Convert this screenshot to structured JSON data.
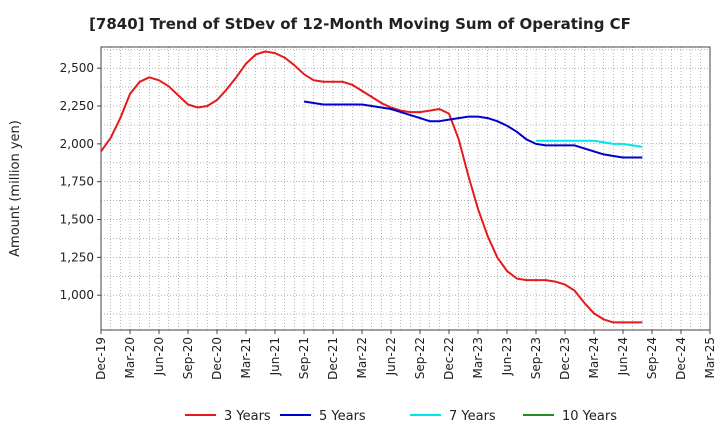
{
  "chart_data": {
    "type": "line",
    "title": "[7840]  Trend of StDev of 12-Month Moving Sum of Operating CF",
    "xlabel": "",
    "ylabel": "Amount (million yen)",
    "ylim": [
      770,
      2640
    ],
    "yticks": [
      1000,
      1250,
      1500,
      1750,
      2000,
      2250,
      2500
    ],
    "ytick_labels": [
      "1,000",
      "1,250",
      "1,500",
      "1,750",
      "2,000",
      "2,250",
      "2,500"
    ],
    "x_ticks": [
      "Dec-19",
      "Mar-20",
      "Jun-20",
      "Sep-20",
      "Dec-20",
      "Mar-21",
      "Jun-21",
      "Sep-21",
      "Dec-21",
      "Mar-22",
      "Jun-22",
      "Sep-22",
      "Dec-22",
      "Mar-23",
      "Jun-23",
      "Sep-23",
      "Dec-23",
      "Mar-24",
      "Jun-24",
      "Sep-24",
      "Dec-24",
      "Mar-25"
    ],
    "grid": true,
    "legend_position": "bottom",
    "series": [
      {
        "name": "3 Years",
        "color": "#e41a1c",
        "start_month_index": 0,
        "values": [
          1950,
          2040,
          2170,
          2330,
          2410,
          2440,
          2420,
          2380,
          2320,
          2260,
          2240,
          2250,
          2290,
          2360,
          2440,
          2530,
          2590,
          2610,
          2600,
          2570,
          2520,
          2460,
          2420,
          2410,
          2410,
          2410,
          2390,
          2350,
          2310,
          2270,
          2240,
          2220,
          2210,
          2210,
          2220,
          2230,
          2200,
          2030,
          1790,
          1570,
          1390,
          1250,
          1160,
          1110,
          1100,
          1100,
          1100,
          1090,
          1070,
          1030,
          950,
          880,
          840,
          820,
          820,
          820,
          820
        ]
      },
      {
        "name": "5 Years",
        "color": "#0000cc",
        "start_month_index": 21,
        "values": [
          2280,
          2270,
          2260,
          2260,
          2260,
          2260,
          2260,
          2250,
          2240,
          2230,
          2210,
          2190,
          2170,
          2150,
          2150,
          2160,
          2170,
          2180,
          2180,
          2170,
          2150,
          2120,
          2080,
          2030,
          2000,
          1990,
          1990,
          1990,
          1990,
          1970,
          1950,
          1930,
          1920,
          1910,
          1910,
          1910
        ]
      },
      {
        "name": "7 Years",
        "color": "#00e5ee",
        "start_month_index": 45,
        "values": [
          2020,
          2020,
          2020,
          2020,
          2020,
          2020,
          2020,
          2010,
          2000,
          2000,
          1990,
          1980
        ]
      },
      {
        "name": "10 Years",
        "color": "#228b22",
        "start_month_index": 0,
        "values": []
      }
    ]
  }
}
